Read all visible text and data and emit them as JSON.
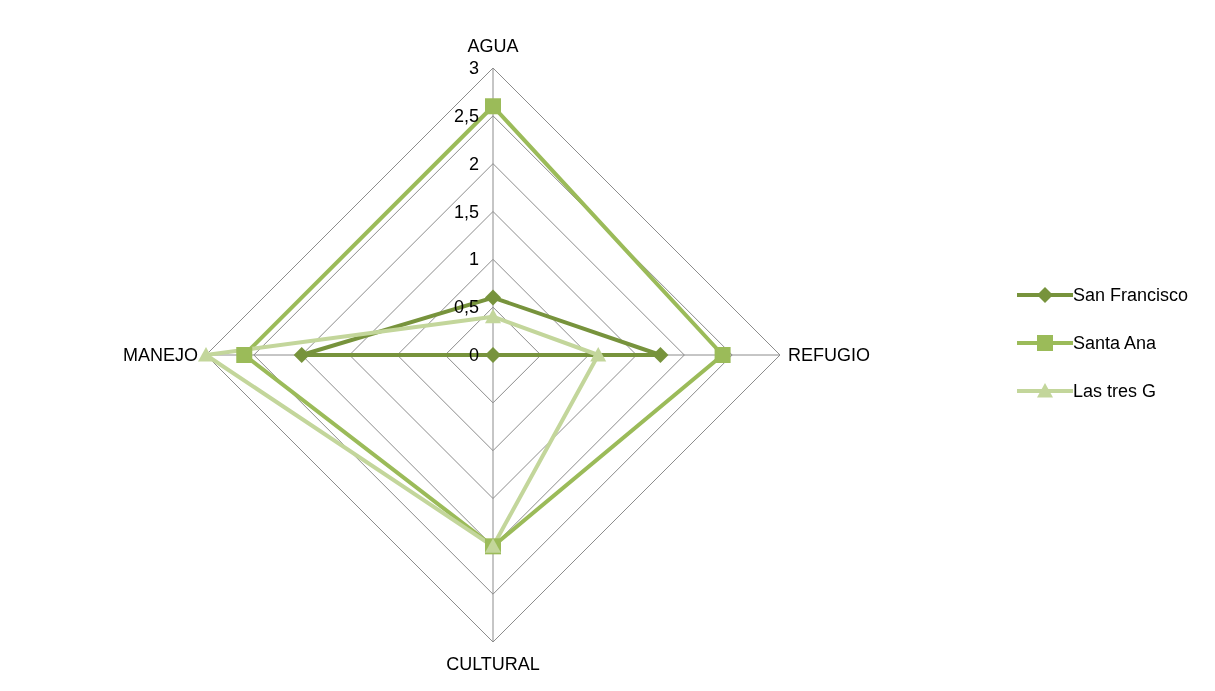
{
  "chart_data": {
    "type": "radar",
    "categories": [
      "AGUA",
      "REFUGIO",
      "CULTURAL",
      "MANEJO"
    ],
    "ylim": [
      0,
      3
    ],
    "yticks": [
      0,
      {
        "value": 0.5,
        "label": "0,5"
      },
      1,
      {
        "value": 1.5,
        "label": "1,5"
      },
      2,
      {
        "value": 2.5,
        "label": "2,5"
      },
      3
    ],
    "legend": "right",
    "grid": true,
    "series": [
      {
        "name": "San Francisco",
        "color": "#77933c",
        "marker": "diamond",
        "values": [
          0.6,
          1.75,
          0,
          2
        ]
      },
      {
        "name": "Santa Ana",
        "color": "#9bbb59",
        "marker": "square",
        "values": [
          2.6,
          2.4,
          2,
          2.6
        ]
      },
      {
        "name": "Las tres G",
        "color": "#c3d69b",
        "marker": "triangle",
        "values": [
          0.4,
          1.1,
          2,
          3
        ]
      }
    ]
  }
}
